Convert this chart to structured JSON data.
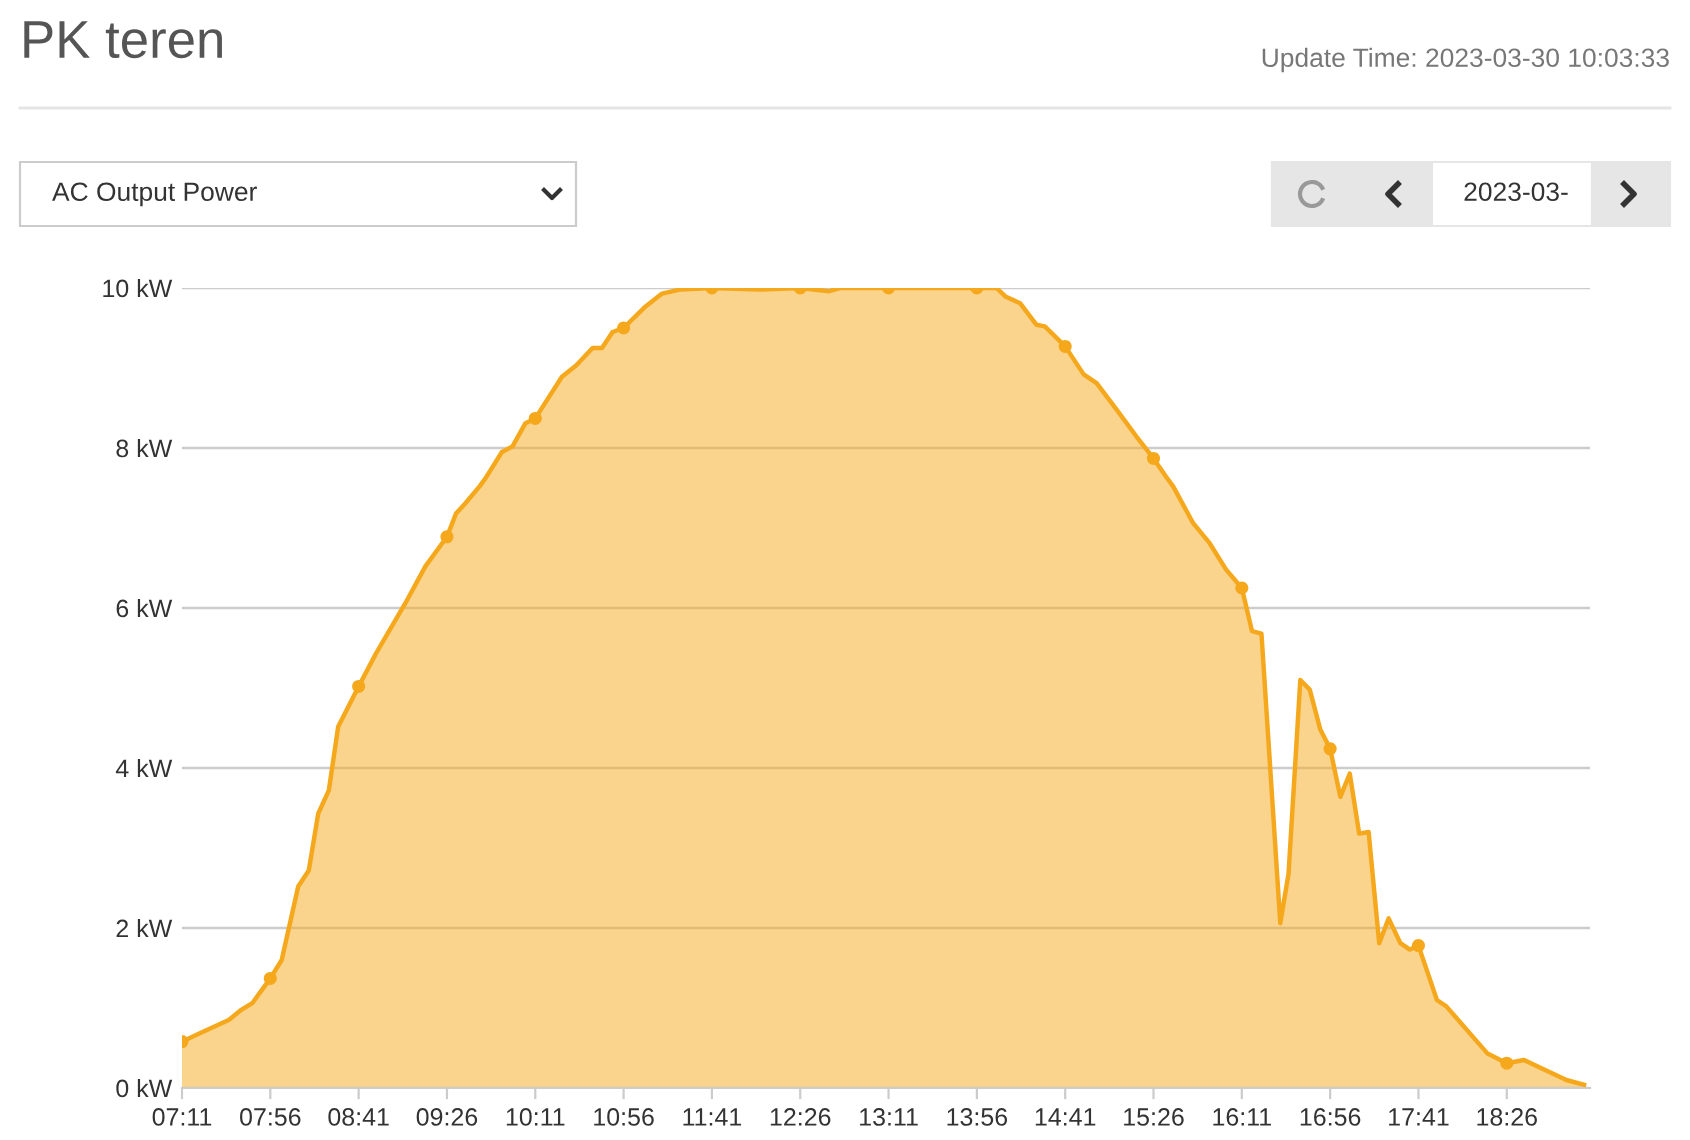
{
  "chart_data": {
    "type": "area",
    "title": "PK teren",
    "annotations": [
      "Update Time: 2023-03-30 10:03:33",
      "AC Output Power",
      "2023-03-"
    ],
    "x": [
      7.1833,
      7.33,
      7.58,
      7.69,
      7.78,
      7.9333,
      8.03,
      8.17,
      8.26,
      8.34,
      8.43,
      8.51,
      8.6833,
      8.83,
      9.08,
      9.25,
      9.4333,
      9.51,
      9.59,
      9.71,
      9.76,
      9.9,
      9.99,
      10.1,
      10.1833,
      10.41,
      10.53,
      10.67,
      10.75,
      10.84,
      10.9333,
      11.12,
      11.26,
      11.41,
      11.6833,
      12.09,
      12.4333,
      12.68,
      12.77,
      13.1833,
      13.5,
      13.9333,
      14.1,
      14.18,
      14.3,
      14.44,
      14.51,
      14.6833,
      14.84,
      14.95,
      15.12,
      15.29,
      15.4333,
      15.54,
      15.6,
      15.77,
      15.91,
      16.05,
      16.1833,
      16.27,
      16.35,
      16.42,
      16.51,
      16.58,
      16.68,
      16.76,
      16.85,
      16.9333,
      17.02,
      17.1,
      17.18,
      17.26,
      17.35,
      17.43,
      17.53,
      17.61,
      17.6833,
      17.84,
      17.92,
      18.27,
      18.4333,
      18.58,
      18.75,
      18.94,
      19.09
    ],
    "series": [
      {
        "color": "#f5a81c",
        "values": [
          0.58,
          0.68,
          0.85,
          0.98,
          1.06,
          1.37,
          1.6,
          2.52,
          2.72,
          3.43,
          3.72,
          4.52,
          5.02,
          5.43,
          6.06,
          6.52,
          6.89,
          7.18,
          7.31,
          7.52,
          7.62,
          7.95,
          8.02,
          8.31,
          8.37,
          8.89,
          9.03,
          9.25,
          9.25,
          9.45,
          9.5,
          9.77,
          9.93,
          9.98,
          10.0,
          9.98,
          10.0,
          9.96,
          10.0,
          10.0,
          10.0,
          10.0,
          10.0,
          9.89,
          9.81,
          9.54,
          9.52,
          9.27,
          8.92,
          8.81,
          8.48,
          8.14,
          7.87,
          7.64,
          7.52,
          7.06,
          6.81,
          6.48,
          6.25,
          5.71,
          5.68,
          4.1,
          2.06,
          2.68,
          5.1,
          4.98,
          4.48,
          4.24,
          3.64,
          3.93,
          3.18,
          3.2,
          1.81,
          2.12,
          1.81,
          1.73,
          1.78,
          1.1,
          1.02,
          0.43,
          0.31,
          0.35,
          0.23,
          0.1,
          0.04
        ]
      },
      {
        "type": "scatter",
        "color": "#f5a81c",
        "x": [
          7.1833,
          7.9333,
          8.6833,
          9.4333,
          10.1833,
          10.9333,
          11.6833,
          12.4333,
          13.1833,
          13.9333,
          14.6833,
          15.4333,
          16.1833,
          16.9333,
          17.6833,
          18.4333
        ],
        "values": [
          0.58,
          1.37,
          5.02,
          6.89,
          8.37,
          9.5,
          10.0,
          10.0,
          10.0,
          10.0,
          9.27,
          7.87,
          6.25,
          4.24,
          1.78,
          0.31
        ]
      }
    ],
    "xlim": [
      7.1833,
      19.14
    ],
    "xticks": [
      {
        "value": 7.1833,
        "label": "07:11"
      },
      {
        "value": 7.9333,
        "label": "07:56"
      },
      {
        "value": 8.6833,
        "label": "08:41"
      },
      {
        "value": 9.4333,
        "label": "09:26"
      },
      {
        "value": 10.1833,
        "label": "10:11"
      },
      {
        "value": 10.9333,
        "label": "10:56"
      },
      {
        "value": 11.6833,
        "label": "11:41"
      },
      {
        "value": 12.4333,
        "label": "12:26"
      },
      {
        "value": 13.1833,
        "label": "13:11"
      },
      {
        "value": 13.9333,
        "label": "13:56"
      },
      {
        "value": 14.6833,
        "label": "14:41"
      },
      {
        "value": 15.4333,
        "label": "15:26"
      },
      {
        "value": 16.1833,
        "label": "16:11"
      },
      {
        "value": 16.9333,
        "label": "16:56"
      },
      {
        "value": 17.6833,
        "label": "17:41"
      },
      {
        "value": 18.4333,
        "label": "18:26"
      }
    ],
    "ylim": [
      0,
      10
    ],
    "yticks": [
      {
        "value": 0,
        "label": "0 kW"
      },
      {
        "value": 2,
        "label": "2 kW"
      },
      {
        "value": 4,
        "label": "4 kW"
      },
      {
        "value": 6,
        "label": "6 kW"
      },
      {
        "value": 8,
        "label": "8 kW"
      },
      {
        "value": 10,
        "label": "10 kW"
      }
    ],
    "grid": "y",
    "line_style": "solid",
    "legend": false
  }
}
